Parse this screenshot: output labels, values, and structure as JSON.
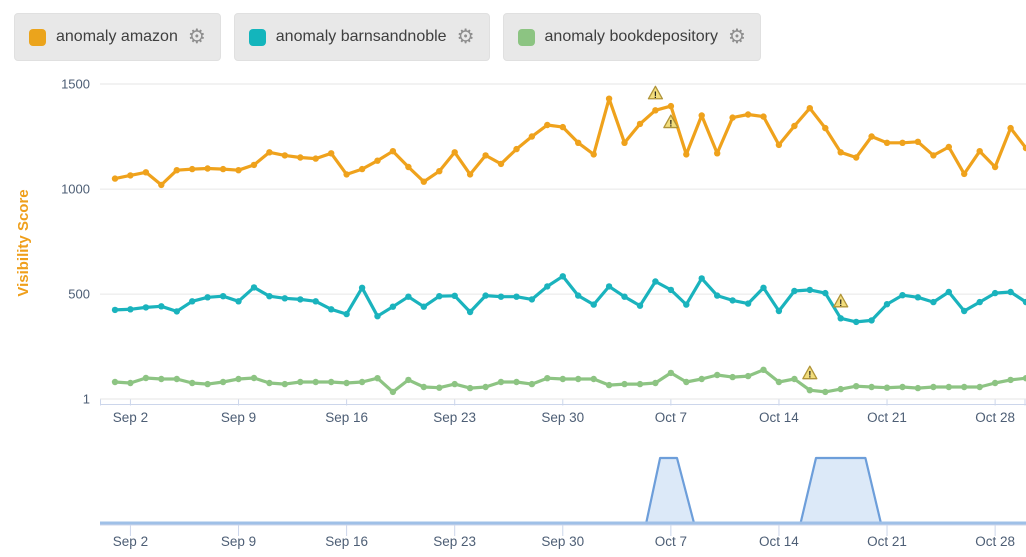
{
  "icons": {
    "gear": "⚙",
    "warning": "!"
  },
  "legend": {
    "items": [
      {
        "label": "anomaly amazon",
        "color": "#eba41c"
      },
      {
        "label": "anomaly barnsandnoble",
        "color": "#13b5bc"
      },
      {
        "label": "anomaly bookdepository",
        "color": "#8cc482"
      }
    ]
  },
  "colors": {
    "gridline": "#e6e6e6",
    "axis_line": "#ccd6eb",
    "axis_label": "#4d5e75",
    "ylabel_title": "#ef9f1b",
    "navigator_fill": "#dce9f8",
    "navigator_stroke": "#6d9eda",
    "navigator_baseline": "#9fc0e7",
    "warning_fill": "#f2dd7d",
    "warning_stroke": "#b09439"
  },
  "chart_data": {
    "type": "line",
    "title": "",
    "xlabel": "",
    "ylabel": "Visibility Score",
    "ylim": [
      1,
      1500
    ],
    "yticks": [
      1,
      500,
      1000,
      1500
    ],
    "ytick_labels": [
      "1",
      "500",
      "1000",
      "1500"
    ],
    "grid": true,
    "legend_position": "top",
    "x_days": 60,
    "x_start": "Sep 1",
    "x_end": "Oct 30",
    "xticks_day_index": [
      1,
      8,
      15,
      22,
      29,
      36,
      43,
      50,
      57
    ],
    "xtick_labels": [
      "Sep 2",
      "Sep 9",
      "Sep 16",
      "Sep 23",
      "Sep 30",
      "Oct 7",
      "Oct 14",
      "Oct 21",
      "Oct 28"
    ],
    "series": [
      {
        "name": "anomaly amazon",
        "color": "#efa21c",
        "values": [
          1050,
          1065,
          1080,
          1020,
          1090,
          1095,
          1098,
          1095,
          1090,
          1115,
          1175,
          1160,
          1150,
          1145,
          1170,
          1070,
          1095,
          1135,
          1180,
          1105,
          1035,
          1085,
          1175,
          1070,
          1160,
          1120,
          1190,
          1250,
          1305,
          1295,
          1220,
          1165,
          1430,
          1220,
          1310,
          1375,
          1395,
          1165,
          1350,
          1170,
          1340,
          1355,
          1345,
          1210,
          1300,
          1385,
          1290,
          1175,
          1150,
          1250,
          1220,
          1220,
          1225,
          1160,
          1200,
          1072,
          1180,
          1105,
          1290,
          1195
        ]
      },
      {
        "name": "anomaly barnsandnoble",
        "color": "#1ab3bd",
        "values": [
          425,
          428,
          437,
          442,
          418,
          466,
          485,
          490,
          466,
          532,
          490,
          480,
          475,
          466,
          428,
          405,
          530,
          395,
          440,
          488,
          440,
          490,
          492,
          415,
          493,
          488,
          488,
          475,
          537,
          585,
          493,
          450,
          537,
          488,
          445,
          560,
          520,
          450,
          575,
          493,
          470,
          455,
          530,
          420,
          515,
          520,
          505,
          385,
          368,
          375,
          452,
          495,
          485,
          462,
          510,
          420,
          462,
          505,
          510,
          462
        ]
      },
      {
        "name": "anomaly bookdepository",
        "color": "#8dc483",
        "values": [
          82,
          77,
          101,
          96,
          96,
          77,
          72,
          82,
          96,
          101,
          77,
          72,
          82,
          82,
          82,
          77,
          82,
          100,
          35,
          92,
          58,
          55,
          72,
          53,
          58,
          82,
          82,
          72,
          100,
          96,
          96,
          96,
          67,
          72,
          72,
          77,
          125,
          82,
          96,
          115,
          105,
          110,
          140,
          82,
          96,
          43,
          35,
          48,
          62,
          58,
          55,
          58,
          53,
          58,
          58,
          58,
          58,
          77,
          92,
          100
        ]
      }
    ],
    "anomaly_markers": [
      {
        "series": 0,
        "day_index": 35,
        "date": "Oct 6",
        "position": "above"
      },
      {
        "series": 0,
        "day_index": 36,
        "date": "Oct 7",
        "position": "below"
      },
      {
        "series": 1,
        "day_index": 47,
        "date": "Oct 18",
        "position": "above"
      },
      {
        "series": 2,
        "day_index": 45,
        "date": "Oct 16",
        "position": "above"
      }
    ],
    "navigator": {
      "xticks_day_index": [
        1,
        8,
        15,
        22,
        29,
        36,
        43,
        50,
        57
      ],
      "xtick_labels": [
        "Sep 2",
        "Sep 9",
        "Sep 16",
        "Sep 23",
        "Sep 30",
        "Oct 7",
        "Oct 14",
        "Oct 21",
        "Oct 28"
      ],
      "anomaly_windows": [
        {
          "base_start_day": 34.4,
          "top_start_day": 35.3,
          "top_end_day": 36.4,
          "base_end_day": 37.5
        },
        {
          "base_start_day": 44.4,
          "top_start_day": 45.4,
          "top_end_day": 48.6,
          "base_end_day": 49.6
        }
      ]
    }
  }
}
